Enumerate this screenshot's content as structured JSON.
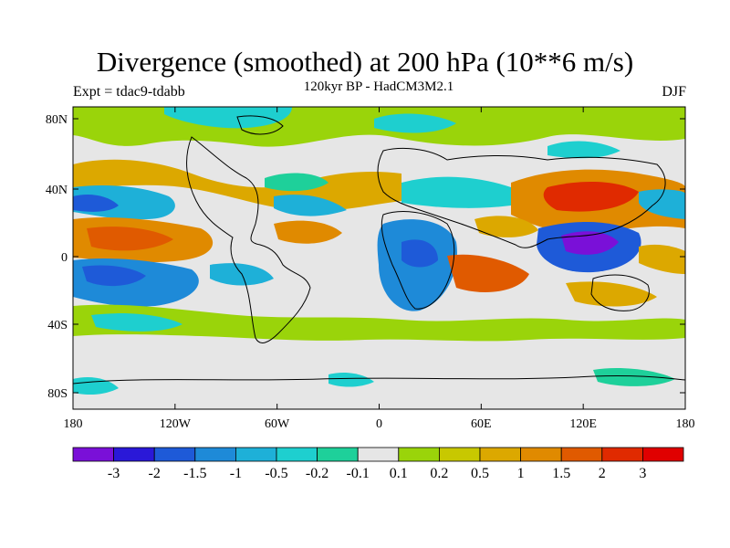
{
  "title": "Divergence (smoothed) at 200 hPa (10**6 m/s)",
  "subtitle": "120kyr BP - HadCM3M2.1",
  "experiment": "Expt = tdac9-tdabb",
  "season": "DJF",
  "axes": {
    "lat_ticks": [
      "80N",
      "40N",
      "0",
      "40S",
      "80S"
    ],
    "lon_ticks": [
      "180",
      "120W",
      "60W",
      "0",
      "60E",
      "120E",
      "180"
    ]
  },
  "colorbar": {
    "labels": [
      "-3",
      "-2",
      "-1.5",
      "-1",
      "-0.5",
      "-0.2",
      "-0.1",
      "0.1",
      "0.2",
      "0.5",
      "1",
      "1.5",
      "2",
      "3"
    ],
    "colors": [
      "#7a10d8",
      "#2a18d8",
      "#1e5ad8",
      "#1e8ad8",
      "#1eb0d8",
      "#1ecfcf",
      "#1ed09a",
      "#e6e6e6",
      "#9ad40a",
      "#c8c800",
      "#dca800",
      "#e08a00",
      "#e05a00",
      "#e02a00",
      "#e00000"
    ]
  },
  "colors": {
    "land_outline": "#000000",
    "background": "#e6e6e6"
  }
}
